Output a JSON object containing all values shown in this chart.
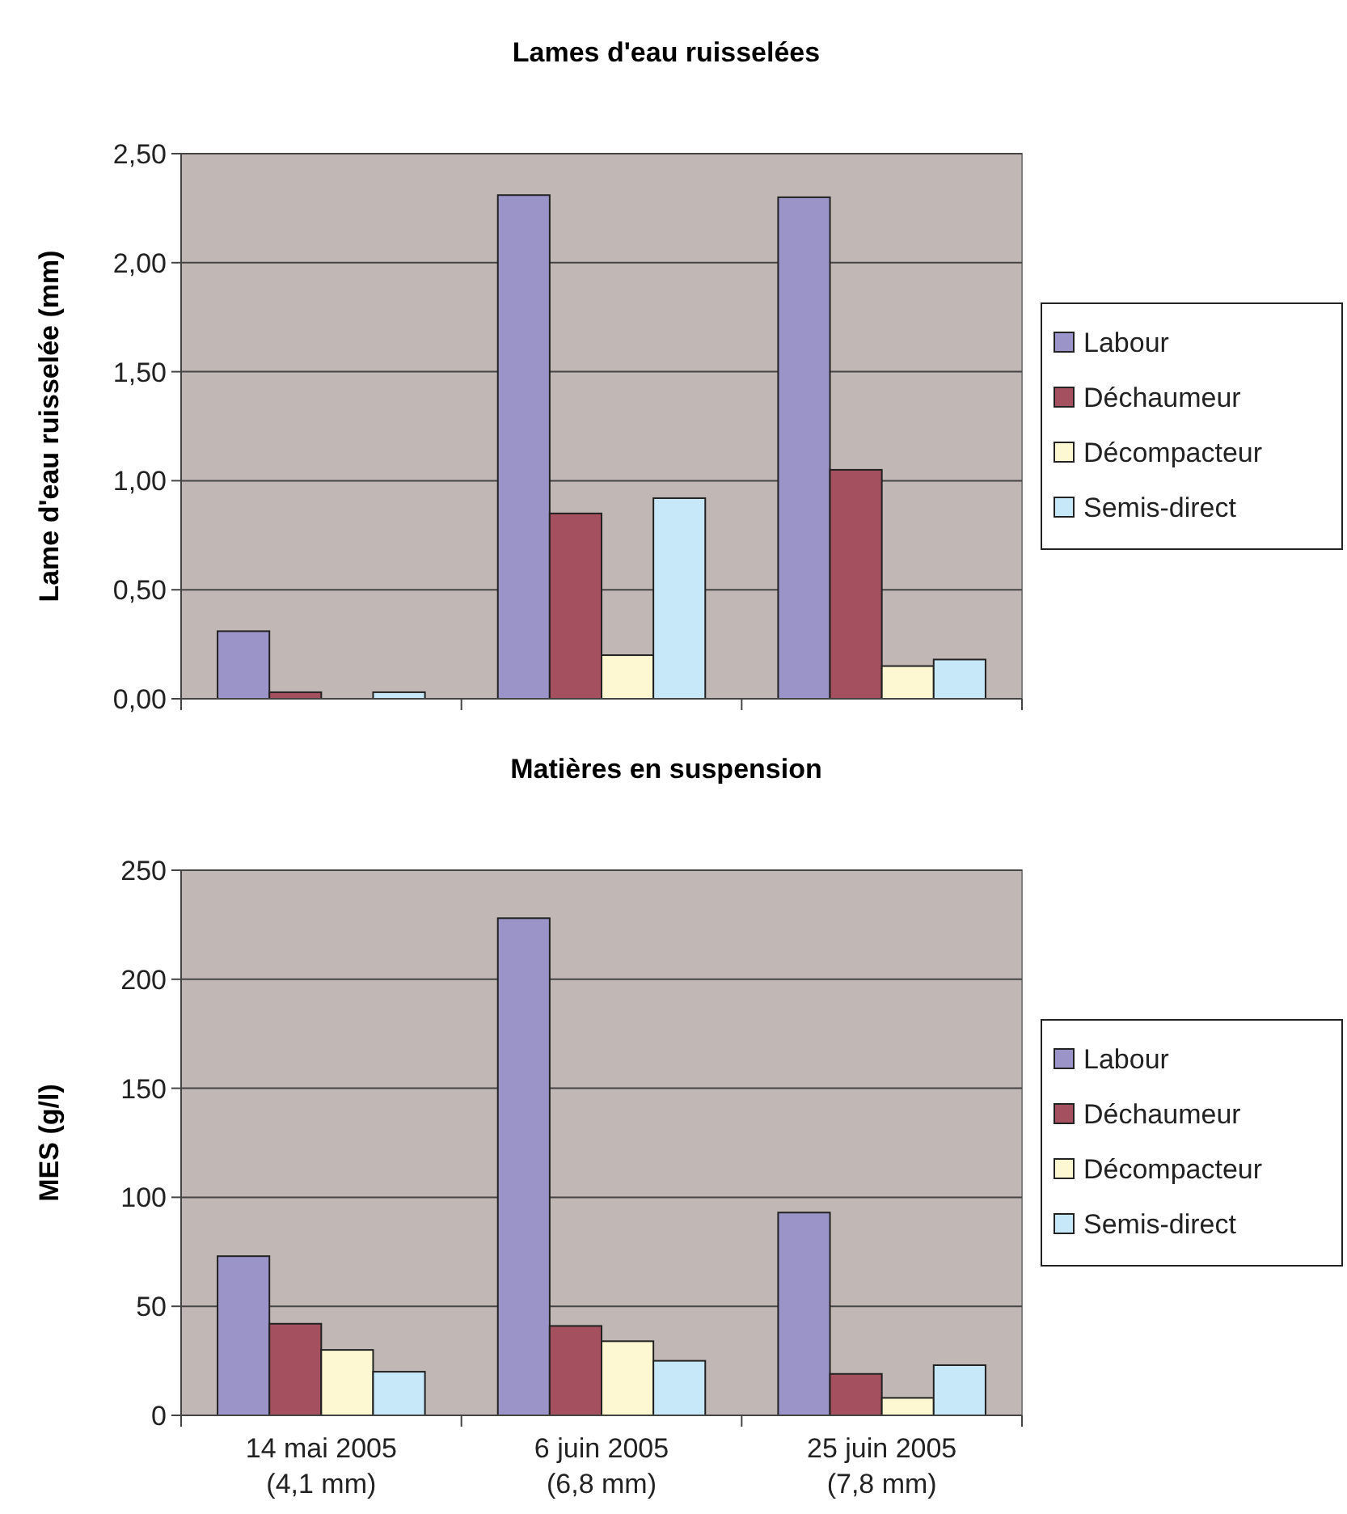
{
  "chart_data": [
    {
      "type": "bar",
      "title": "Lames d'eau ruisselées",
      "ylabel": "Lame d'eau ruisselée (mm)",
      "categories": [
        null,
        null,
        null
      ],
      "ylim": [
        0,
        2.5
      ],
      "yticks": [
        {
          "value": 0,
          "label": "0,00"
        },
        {
          "value": 0.5,
          "label": "0,50"
        },
        {
          "value": 1,
          "label": "1,00"
        },
        {
          "value": 1.5,
          "label": "1,50"
        },
        {
          "value": 2,
          "label": "2,00"
        },
        {
          "value": 2.5,
          "label": "2,50"
        }
      ],
      "grid": "y",
      "legend": "right",
      "series": [
        {
          "name": "Labour",
          "color": "#9a94c8",
          "values": [
            0.31,
            2.31,
            2.3
          ]
        },
        {
          "name": "Déchaumeur",
          "color": "#a4505e",
          "values": [
            0.03,
            0.85,
            1.05
          ]
        },
        {
          "name": "Décompacteur",
          "color": "#fdf8d2",
          "values": [
            null,
            0.2,
            0.15
          ]
        },
        {
          "name": "Semis-direct",
          "color": "#c6e8f8",
          "values": [
            0.03,
            0.92,
            0.18
          ]
        }
      ]
    },
    {
      "type": "bar",
      "title": "Matières en suspension",
      "ylabel": "MES (g/l)",
      "categories": [
        "14 mai 2005 (4,1 mm)",
        "6 juin 2005 (6,8 mm)",
        "25 juin 2005 (7,8 mm)"
      ],
      "ylim": [
        0,
        250
      ],
      "yticks": [
        0,
        50,
        100,
        150,
        200,
        250
      ],
      "grid": "y",
      "legend": "right",
      "series": [
        {
          "name": "Labour",
          "color": "#9a94c8",
          "values": [
            73,
            228,
            93
          ]
        },
        {
          "name": "Déchaumeur",
          "color": "#a4505e",
          "values": [
            42,
            41,
            19
          ]
        },
        {
          "name": "Décompacteur",
          "color": "#fdf8d2",
          "values": [
            30,
            34,
            8
          ]
        },
        {
          "name": "Semis-direct",
          "color": "#c6e8f8",
          "values": [
            20,
            25,
            23
          ]
        }
      ]
    }
  ]
}
